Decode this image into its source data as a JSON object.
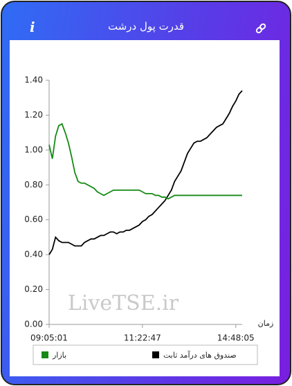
{
  "header": {
    "title": "قدرت پول درشت"
  },
  "chart_data": {
    "type": "line",
    "categories": [
      "09:05:01",
      null,
      null,
      null,
      null,
      null,
      null,
      null,
      null,
      null,
      null,
      null,
      null,
      null,
      null,
      null,
      null,
      null,
      null,
      null,
      null,
      null,
      null,
      null,
      null,
      null,
      null,
      null,
      null,
      "11:22:47",
      null,
      null,
      null,
      null,
      null,
      null,
      null,
      null,
      null,
      null,
      null,
      null,
      null,
      null,
      null,
      null,
      null,
      null,
      null,
      null,
      null,
      null,
      null,
      null,
      null,
      null,
      null,
      null,
      "14:48:05",
      null,
      null
    ],
    "x_label": "زمان",
    "watermark": "LiveTSE.ir",
    "ylim": [
      0,
      1.4
    ],
    "yticks": [
      {
        "value": 0,
        "label": "0.00"
      },
      {
        "value": 0.2,
        "label": "0.20"
      },
      {
        "value": 0.4,
        "label": "0.40"
      },
      {
        "value": 0.6,
        "label": "0.60"
      },
      {
        "value": 0.8,
        "label": "0.80"
      },
      {
        "value": 1,
        "label": "1.00"
      },
      {
        "value": 1.2,
        "label": "1.20"
      },
      {
        "value": 1.4,
        "label": "1.40"
      }
    ],
    "grid": false,
    "series": [
      {
        "name": "صندوق های درآمد ثابت",
        "color": "#000000",
        "values": [
          0.4,
          0.43,
          0.5,
          0.48,
          0.47,
          0.47,
          0.47,
          0.46,
          0.45,
          0.45,
          0.45,
          0.47,
          0.48,
          0.49,
          0.49,
          0.5,
          0.51,
          0.51,
          0.52,
          0.53,
          0.53,
          0.52,
          0.53,
          0.53,
          0.54,
          0.54,
          0.55,
          0.56,
          0.57,
          0.59,
          0.6,
          0.62,
          0.63,
          0.65,
          0.67,
          0.69,
          0.71,
          0.74,
          0.77,
          0.82,
          0.85,
          0.88,
          0.93,
          0.98,
          1.01,
          1.04,
          1.05,
          1.05,
          1.06,
          1.07,
          1.09,
          1.11,
          1.13,
          1.14,
          1.15,
          1.18,
          1.21,
          1.25,
          1.28,
          1.32,
          1.34
        ]
      },
      {
        "name": "بازار",
        "color": "#138a13",
        "values": [
          1.03,
          0.95,
          1.08,
          1.14,
          1.15,
          1.1,
          1.04,
          0.96,
          0.87,
          0.82,
          0.81,
          0.81,
          0.8,
          0.79,
          0.78,
          0.76,
          0.75,
          0.74,
          0.75,
          0.76,
          0.77,
          0.77,
          0.77,
          0.77,
          0.77,
          0.77,
          0.77,
          0.77,
          0.77,
          0.76,
          0.75,
          0.75,
          0.75,
          0.74,
          0.74,
          0.73,
          0.73,
          0.72,
          0.73,
          0.74,
          0.74,
          0.74,
          0.74,
          0.74,
          0.74,
          0.74,
          0.74,
          0.74,
          0.74,
          0.74,
          0.74,
          0.74,
          0.74,
          0.74,
          0.74,
          0.74,
          0.74,
          0.74,
          0.74,
          0.74,
          0.74
        ]
      }
    ]
  }
}
